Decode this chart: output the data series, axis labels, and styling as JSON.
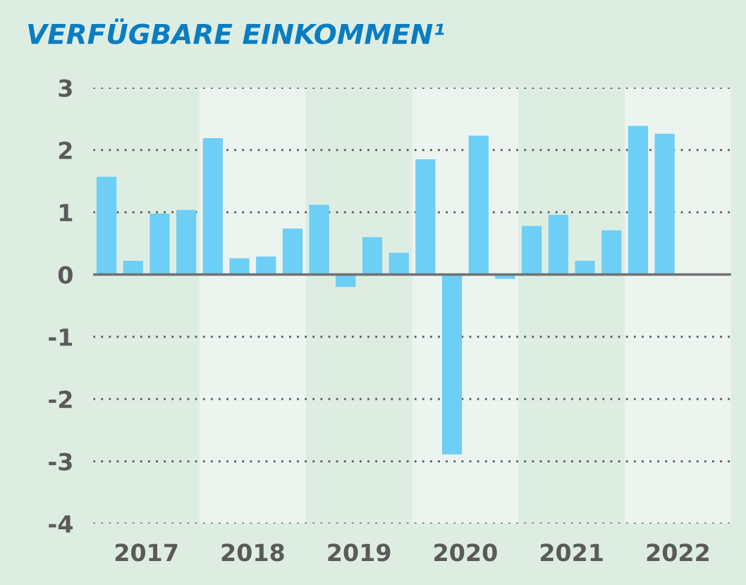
{
  "chart_data": {
    "type": "bar",
    "title": "VERFÜGBARE EINKOMMEN¹",
    "x": [
      2017.125,
      2017.375,
      2017.625,
      2017.875,
      2018.125,
      2018.375,
      2018.625,
      2018.875,
      2019.125,
      2019.375,
      2019.625,
      2019.875,
      2020.125,
      2020.375,
      2020.625,
      2020.875,
      2021.125,
      2021.375,
      2021.625,
      2021.875,
      2022.125,
      2022.375
    ],
    "series": [
      {
        "color": "#6dcff6",
        "values": [
          1.57,
          0.22,
          0.98,
          1.04,
          2.19,
          0.26,
          0.29,
          0.74,
          1.12,
          -0.2,
          0.6,
          0.35,
          1.85,
          -2.89,
          2.23,
          -0.07,
          0.78,
          0.96,
          0.22,
          0.71,
          2.39,
          2.26
        ]
      }
    ],
    "xlim": [
      2017,
      2023
    ],
    "xticks": [
      {
        "value": 2017.5,
        "label": "2017"
      },
      {
        "value": 2018.5,
        "label": "2018"
      },
      {
        "value": 2019.5,
        "label": "2019"
      },
      {
        "value": 2020.5,
        "label": "2020"
      },
      {
        "value": 2021.5,
        "label": "2021"
      },
      {
        "value": 2022.5,
        "label": "2022"
      }
    ],
    "ylim": [
      -4,
      3
    ],
    "yticks": [
      -4,
      -3,
      -2,
      -1,
      0,
      1,
      2,
      3
    ],
    "grid": "y",
    "ref_lines": [
      {
        "axis": "y",
        "value": 0,
        "color": "#707070"
      }
    ],
    "bands": [
      {
        "axis": "x",
        "from": 2018,
        "to": 2019,
        "color": "#ecf4ef"
      },
      {
        "axis": "x",
        "from": 2020,
        "to": 2021,
        "color": "#ecf4ef"
      },
      {
        "axis": "x",
        "from": 2022,
        "to": 2023,
        "color": "#ecf4ef"
      }
    ]
  }
}
